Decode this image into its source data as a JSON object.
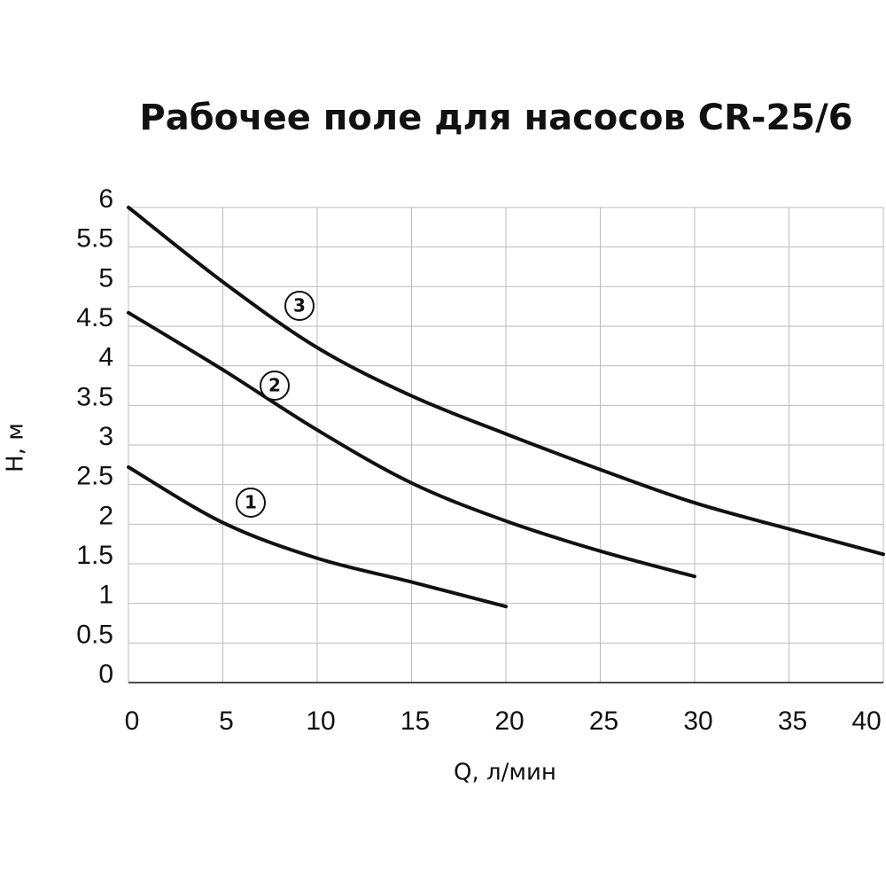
{
  "chart_data": {
    "type": "line",
    "title": "Рабочее поле для насосов CR-25/6",
    "x_label": "Q, л/мин",
    "y_label": "H, м",
    "x": [
      0,
      5,
      10,
      15,
      20,
      25,
      30,
      35,
      40
    ],
    "series": [
      {
        "name": "1",
        "color": "#111111",
        "values": [
          2.72,
          2.02,
          1.57,
          1.27,
          0.96,
          null,
          null,
          null,
          null
        ]
      },
      {
        "name": "2",
        "color": "#111111",
        "values": [
          4.67,
          3.95,
          3.19,
          2.52,
          2.04,
          1.66,
          1.34,
          null,
          null
        ]
      },
      {
        "name": "3",
        "color": "#111111",
        "values": [
          6.0,
          5.06,
          4.23,
          3.62,
          3.14,
          2.69,
          2.27,
          1.94,
          1.62
        ]
      }
    ],
    "xlim": [
      0,
      40
    ],
    "xticks": [
      0,
      5,
      10,
      15,
      20,
      25,
      30,
      35,
      40
    ],
    "ylim": [
      0,
      6
    ],
    "yticks": [
      0,
      0.5,
      1,
      1.5,
      2,
      2.5,
      3,
      3.5,
      4,
      4.5,
      5,
      5.5,
      6
    ],
    "grid": true
  }
}
